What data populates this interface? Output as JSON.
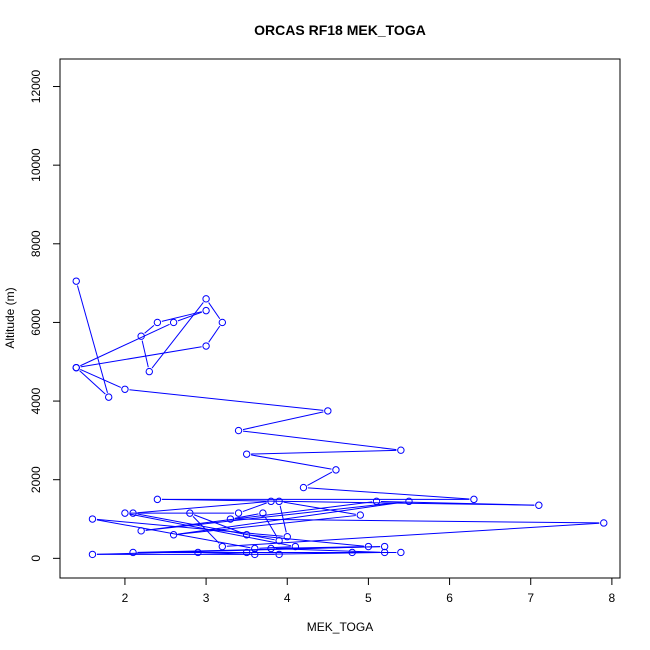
{
  "chart_data": {
    "type": "line",
    "title": "ORCAS RF18 MEK_TOGA",
    "xlabel": "MEK_TOGA",
    "ylabel": "Altitude (m)",
    "xlim": [
      1.2,
      8.1
    ],
    "ylim": [
      -500,
      12700
    ],
    "x_ticks": [
      2,
      3,
      4,
      5,
      6,
      7,
      8
    ],
    "y_ticks": [
      0,
      2000,
      4000,
      6000,
      8000,
      10000,
      12000
    ],
    "grid": false,
    "markers": "open-circle",
    "color": "#0000ff",
    "x": [
      1.4,
      1.8,
      1.4,
      3.0,
      3.2,
      3.0,
      2.3,
      2.2,
      2.4,
      3.0,
      2.6,
      1.4,
      2.0,
      4.5,
      3.4,
      5.4,
      3.5,
      4.6,
      4.2,
      6.3,
      2.4,
      7.1,
      5.1,
      2.2,
      5.5,
      2.6,
      4.9,
      3.9,
      4.0,
      1.6,
      3.6,
      4.1,
      2.0,
      3.4,
      3.8,
      2.1,
      3.9,
      3.7,
      3.3,
      7.9,
      3.2,
      2.8,
      3.5,
      5.0,
      3.8,
      5.2,
      3.6,
      2.9,
      4.8,
      3.5,
      5.4,
      2.1,
      5.2,
      1.6,
      3.9
    ],
    "y": [
      7050,
      4100,
      4850,
      5400,
      6000,
      6600,
      4750,
      5650,
      6000,
      6300,
      6000,
      4850,
      4300,
      3750,
      3250,
      2750,
      2650,
      2250,
      1800,
      1500,
      1500,
      1350,
      1450,
      700,
      1450,
      600,
      1100,
      1450,
      550,
      1000,
      250,
      300,
      1150,
      1150,
      1450,
      1150,
      450,
      1150,
      1000,
      900,
      300,
      1150,
      600,
      300,
      250,
      150,
      100,
      150,
      150,
      150,
      150,
      150,
      300,
      100,
      100
    ]
  }
}
